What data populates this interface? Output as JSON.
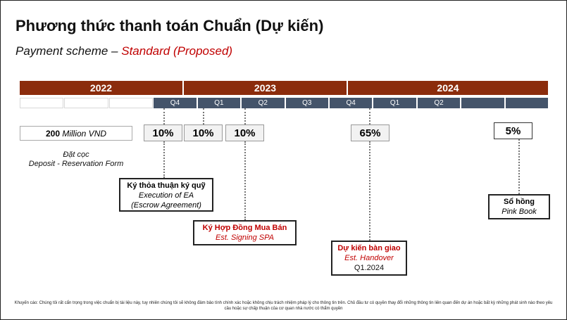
{
  "title": "Phương thức thanh toán Chuẩn (Dự kiến)",
  "subtitle": {
    "prefix": "Payment scheme – ",
    "accent": "Standard (Proposed)"
  },
  "timeline": {
    "years": [
      "2022",
      "2023",
      "2024"
    ],
    "quarters": [
      "",
      "",
      "",
      "Q4",
      "Q1",
      "Q2",
      "Q3",
      "Q4",
      "Q1",
      "Q2",
      "",
      ""
    ]
  },
  "deposit": {
    "amount": "200",
    "unit": "Million VND",
    "label_vi": "Đặt cọc",
    "label_en": "Deposit - Reservation Form"
  },
  "percentages": [
    "10%",
    "10%",
    "10%",
    "65%",
    "5%"
  ],
  "milestones": {
    "escrow": {
      "title": "Ký thỏa thuận ký quỹ",
      "line1": "Execution of EA",
      "line2": "(Escrow Agreement)"
    },
    "spa": {
      "title": "Ký Hợp Đồng Mua Bán",
      "line1": "Est. Signing SPA"
    },
    "handover": {
      "title": "Dự kiến bàn giao",
      "line1": "Est. Handover",
      "line2": "Q1.2024"
    },
    "pinkbook": {
      "title": "Sổ hồng",
      "line1": "Pink Book"
    }
  },
  "disclaimer": "Khuyến cáo: Chúng tôi rất cẩn trọng trong việc chuẩn bị tài liệu này, tuy nhiên chúng tôi sẽ không đảm bảo tính chính xác hoặc không chịu trách nhiệm pháp lý cho thông tin trên. Chủ đầu tư có quyền thay đổi những thông tin liên quan đến dự án hoặc bất kỳ những phát sinh nào theo yêu cầu hoặc sự chấp thuận của cơ quan nhà nước có thẩm quyền"
}
